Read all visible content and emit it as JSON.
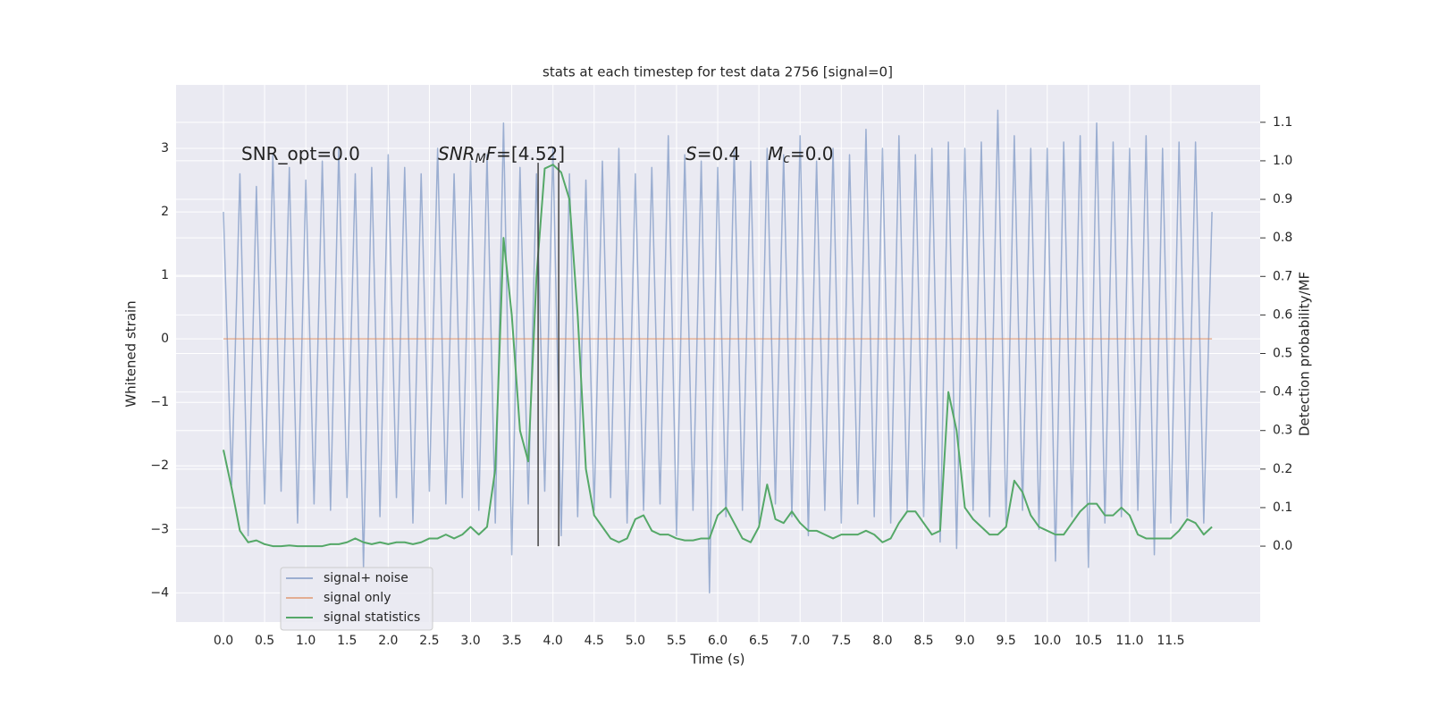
{
  "chart_data": {
    "type": "line",
    "title": "stats at each timestep for test data 2756 [signal=0]",
    "xlabel": "Time (s)",
    "ylabel": "Whitened strain",
    "y2label": "Detection probability/MF",
    "xlim": [
      -0.575,
      12.585
    ],
    "ylim": [
      -4.46,
      4.0
    ],
    "y2lim": [
      -0.197,
      1.197
    ],
    "xticks": [
      {
        "value": 0,
        "label": "0.0"
      },
      0.5,
      {
        "value": 1,
        "label": "1.0"
      },
      1.5,
      {
        "value": 2,
        "label": "2.0"
      },
      2.5,
      {
        "value": 3,
        "label": "3.0"
      },
      3.5,
      {
        "value": 4,
        "label": "4.0"
      },
      4.5,
      {
        "value": 5,
        "label": "5.0"
      },
      5.5,
      {
        "value": 6,
        "label": "6.0"
      },
      6.5,
      {
        "value": 7,
        "label": "7.0"
      },
      7.5,
      {
        "value": 8,
        "label": "8.0"
      },
      8.5,
      {
        "value": 9,
        "label": "9.0"
      },
      9.5,
      {
        "value": 10,
        "label": "10.0"
      },
      10.5,
      {
        "value": 11,
        "label": "11.0"
      },
      11.5
    ],
    "yticks": [
      {
        "value": -4,
        "label": "−4"
      },
      {
        "value": -3,
        "label": "−3"
      },
      {
        "value": -2,
        "label": "−2"
      },
      {
        "value": -1,
        "label": "−1"
      },
      0,
      1,
      2,
      3
    ],
    "y2ticks": [
      {
        "value": 0,
        "label": "0.0"
      },
      0.1,
      0.2,
      0.3,
      0.4,
      0.5,
      0.6,
      0.7,
      0.8,
      0.9,
      {
        "value": 1,
        "label": "1.0"
      },
      1.1
    ],
    "grid": true,
    "background": "#eaeaf2",
    "x": [
      0,
      0.1,
      0.2,
      0.3,
      0.4,
      0.5,
      0.6,
      0.7,
      0.8,
      0.9,
      1,
      1.1,
      1.2,
      1.3,
      1.4,
      1.5,
      1.6,
      1.7,
      1.8,
      1.9,
      2,
      2.1,
      2.2,
      2.3,
      2.4,
      2.5,
      2.6,
      2.7,
      2.8,
      2.9,
      3,
      3.1,
      3.2,
      3.3,
      3.4,
      3.5,
      3.6,
      3.7,
      3.8,
      3.9,
      4,
      4.1,
      4.2,
      4.3,
      4.4,
      4.5,
      4.6,
      4.7,
      4.8,
      4.9,
      5,
      5.1,
      5.2,
      5.3,
      5.4,
      5.5,
      5.6,
      5.7,
      5.8,
      5.9,
      6,
      6.1,
      6.2,
      6.3,
      6.4,
      6.5,
      6.6,
      6.7,
      6.8,
      6.9,
      7,
      7.1,
      7.2,
      7.3,
      7.4,
      7.5,
      7.6,
      7.7,
      7.8,
      7.9,
      8,
      8.1,
      8.2,
      8.3,
      8.4,
      8.5,
      8.6,
      8.7,
      8.8,
      8.9,
      9,
      9.1,
      9.2,
      9.3,
      9.4,
      9.5,
      9.6,
      9.7,
      9.8,
      9.9,
      10,
      10.1,
      10.2,
      10.3,
      10.4,
      10.5,
      10.6,
      10.7,
      10.8,
      10.9,
      11,
      11.1,
      11.2,
      11.3,
      11.4,
      11.5,
      11.6,
      11.7,
      11.8,
      11.9,
      12
    ],
    "series": [
      {
        "name": "signal+ noise",
        "color": "#4c72b0",
        "opacity": 0.5,
        "values": [
          2.0,
          -2.3,
          2.6,
          -3.1,
          2.4,
          -2.6,
          2.9,
          -2.4,
          2.7,
          -2.9,
          2.5,
          -2.6,
          2.8,
          -2.7,
          3.0,
          -2.5,
          2.6,
          -3.6,
          2.7,
          -2.8,
          2.9,
          -2.5,
          2.7,
          -2.9,
          2.6,
          -2.4,
          3.0,
          -2.6,
          2.6,
          -2.5,
          2.8,
          -2.7,
          2.9,
          -2.9,
          3.4,
          -3.4,
          2.7,
          -2.6,
          2.6,
          -2.4,
          3.0,
          -3.1,
          2.6,
          -2.8,
          2.5,
          -2.7,
          2.8,
          -2.5,
          3.0,
          -2.9,
          2.6,
          -2.7,
          2.7,
          -2.6,
          3.2,
          -3.1,
          2.9,
          -2.7,
          2.8,
          -4.0,
          2.7,
          -2.8,
          3.0,
          -2.7,
          2.8,
          -2.9,
          3.0,
          -2.6,
          2.9,
          -2.8,
          3.2,
          -3.1,
          2.8,
          -2.7,
          3.0,
          -2.9,
          2.9,
          -2.6,
          3.3,
          -2.8,
          3.0,
          -2.9,
          3.2,
          -2.7,
          2.9,
          -2.8,
          3.0,
          -3.2,
          3.1,
          -3.3,
          3.0,
          -2.7,
          3.1,
          -2.8,
          3.6,
          -2.9,
          3.2,
          -2.7,
          3.0,
          -3.0,
          3.0,
          -3.5,
          3.1,
          -2.8,
          3.2,
          -3.6,
          3.4,
          -2.9,
          3.1,
          -2.8,
          3.0,
          -2.7,
          3.2,
          -3.4,
          3.0,
          -2.9,
          3.1,
          -2.8,
          3.1,
          -2.9,
          2.0
        ]
      },
      {
        "name": "signal only",
        "color": "#dd8452",
        "opacity": 0.6,
        "values": [
          0,
          0,
          0,
          0,
          0,
          0,
          0,
          0,
          0,
          0,
          0,
          0,
          0,
          0,
          0,
          0,
          0,
          0,
          0,
          0,
          0,
          0,
          0,
          0,
          0,
          0,
          0,
          0,
          0,
          0,
          0,
          0,
          0,
          0,
          0,
          0,
          0,
          0,
          0,
          0,
          0,
          0,
          0,
          0,
          0,
          0,
          0,
          0,
          0,
          0,
          0,
          0,
          0,
          0,
          0,
          0,
          0,
          0,
          0,
          0,
          0,
          0,
          0,
          0,
          0,
          0,
          0,
          0,
          0,
          0,
          0,
          0,
          0,
          0,
          0,
          0,
          0,
          0,
          0,
          0,
          0,
          0,
          0,
          0,
          0,
          0,
          0,
          0,
          0,
          0,
          0,
          0,
          0,
          0,
          0,
          0,
          0,
          0,
          0,
          0,
          0,
          0,
          0,
          0,
          0,
          0,
          0,
          0,
          0,
          0,
          0,
          0,
          0,
          0,
          0,
          0,
          0,
          0,
          0,
          0,
          0
        ]
      },
      {
        "name": "signal statistics",
        "color": "#55a868",
        "opacity": 1,
        "axis": "y2",
        "values": [
          0.25,
          0.15,
          0.04,
          0.01,
          0.015,
          0.005,
          0,
          0,
          0.002,
          0,
          0,
          0,
          0,
          0.005,
          0.005,
          0.01,
          0.02,
          0.01,
          0.005,
          0.01,
          0.005,
          0.01,
          0.01,
          0.005,
          0.01,
          0.02,
          0.02,
          0.03,
          0.02,
          0.03,
          0.05,
          0.03,
          0.05,
          0.2,
          0.8,
          0.6,
          0.3,
          0.22,
          0.7,
          0.98,
          0.99,
          0.97,
          0.9,
          0.6,
          0.2,
          0.08,
          0.05,
          0.02,
          0.01,
          0.02,
          0.07,
          0.08,
          0.04,
          0.03,
          0.03,
          0.02,
          0.015,
          0.015,
          0.02,
          0.02,
          0.08,
          0.1,
          0.06,
          0.02,
          0.01,
          0.05,
          0.16,
          0.07,
          0.06,
          0.09,
          0.06,
          0.04,
          0.04,
          0.03,
          0.02,
          0.03,
          0.03,
          0.03,
          0.04,
          0.03,
          0.01,
          0.02,
          0.06,
          0.09,
          0.09,
          0.06,
          0.03,
          0.04,
          0.4,
          0.3,
          0.1,
          0.07,
          0.05,
          0.03,
          0.03,
          0.05,
          0.17,
          0.14,
          0.08,
          0.05,
          0.04,
          0.03,
          0.03,
          0.06,
          0.09,
          0.11,
          0.11,
          0.08,
          0.08,
          0.1,
          0.08,
          0.03,
          0.02,
          0.02,
          0.02,
          0.02,
          0.04,
          0.07,
          0.06,
          0.03,
          0.05
        ]
      }
    ],
    "vlines": {
      "x": [
        3.82,
        4.07
      ],
      "y2_range": [
        0,
        0.995
      ],
      "color": "#444444"
    },
    "annotations": [
      {
        "parts": [
          {
            "text": "SNR_opt=0.0"
          }
        ]
      },
      {
        "parts": [
          {
            "text": "SNR",
            "italic": true
          },
          {
            "text": "M",
            "italic": true,
            "sub": true
          },
          {
            "text": "F",
            "italic": true
          },
          {
            "text": "=[4.52]"
          }
        ]
      },
      {
        "parts": [
          {
            "text": "S",
            "italic": true
          },
          {
            "text": "=0.4"
          }
        ]
      },
      {
        "parts": [
          {
            "text": "M",
            "italic": true
          },
          {
            "text": "c",
            "italic": true,
            "sub": true
          },
          {
            "text": "=0.0"
          }
        ]
      }
    ]
  }
}
